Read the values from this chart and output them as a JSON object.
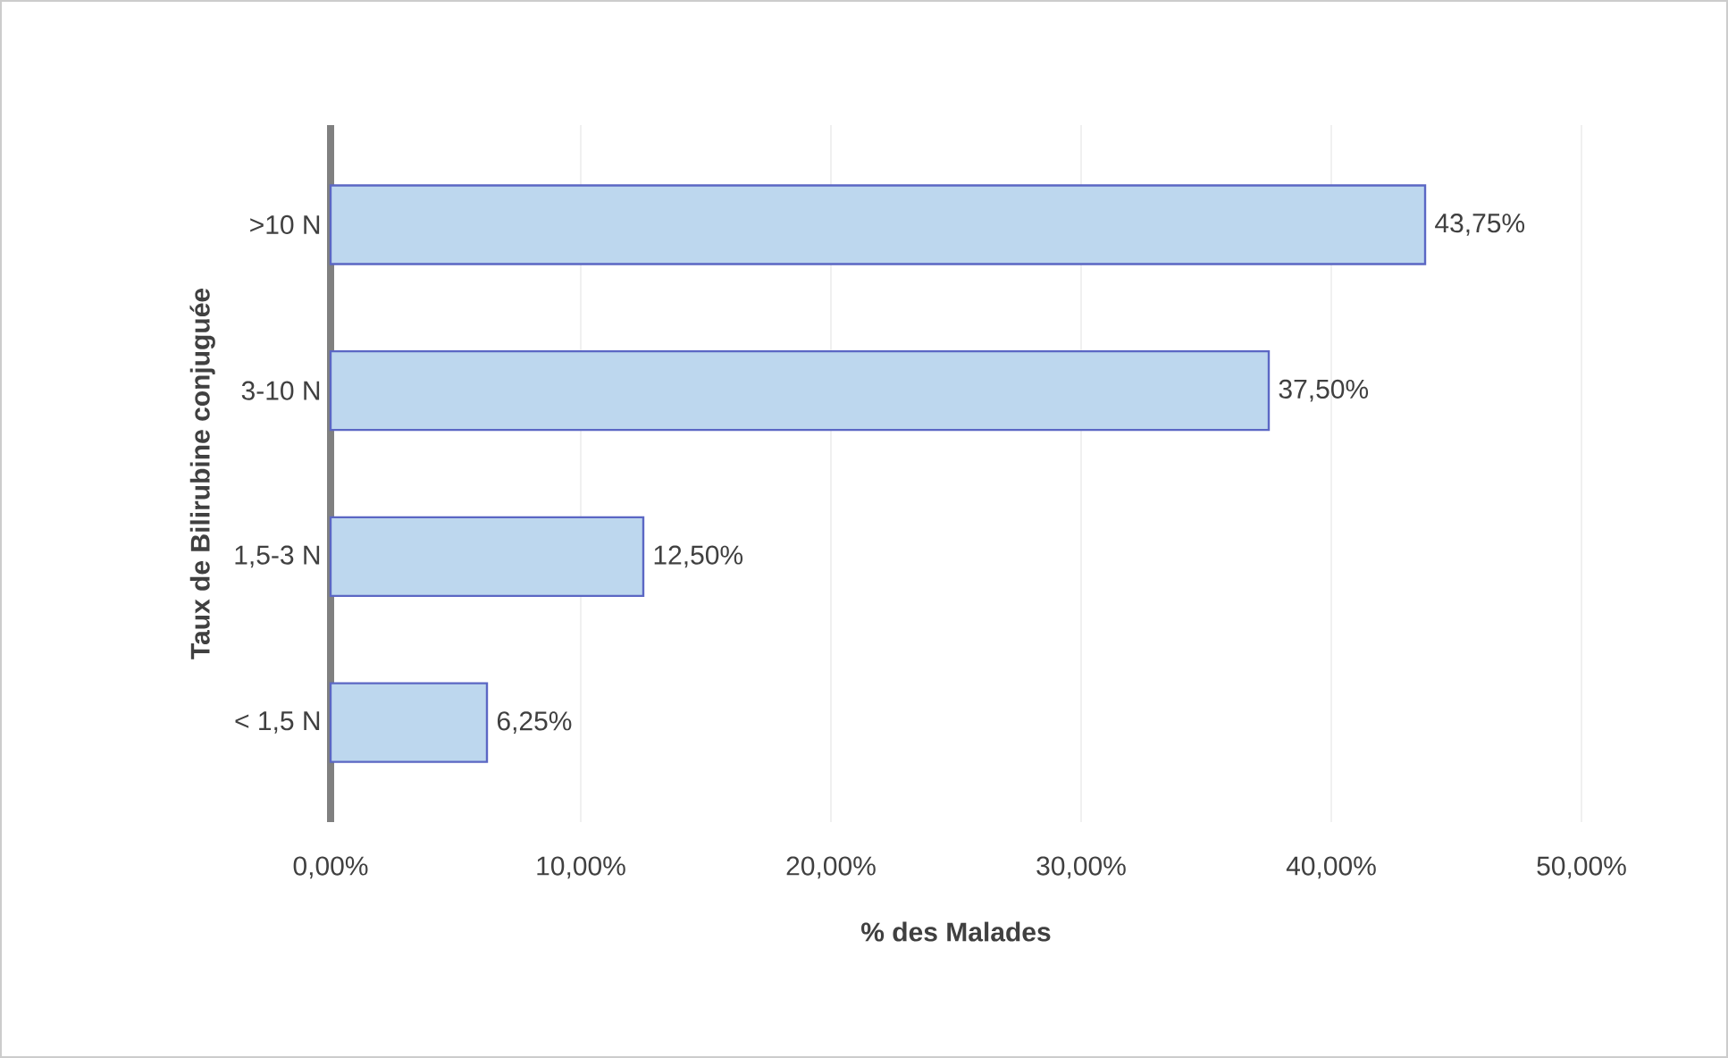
{
  "chart_data": {
    "type": "bar",
    "orientation": "horizontal",
    "ylabel": "Taux de Bilirubine conjuguée",
    "xlabel": "% des Malades",
    "categories": [
      ">10 N",
      "3-10 N",
      "1,5-3 N",
      "< 1,5 N"
    ],
    "values": [
      43.75,
      37.5,
      12.5,
      6.25
    ],
    "value_labels": [
      "43,75%",
      "37,50%",
      "12,50%",
      "6,25%"
    ],
    "color": "#bdd7ee",
    "xlim": [
      0,
      50
    ],
    "xticks": [
      {
        "value": 0,
        "label": "0,00%"
      },
      {
        "value": 10,
        "label": "10,00%"
      },
      {
        "value": 20,
        "label": "20,00%"
      },
      {
        "value": 30,
        "label": "30,00%"
      },
      {
        "value": 40,
        "label": "40,00%"
      },
      {
        "value": 50,
        "label": "50,00%"
      }
    ],
    "grid": "x"
  }
}
